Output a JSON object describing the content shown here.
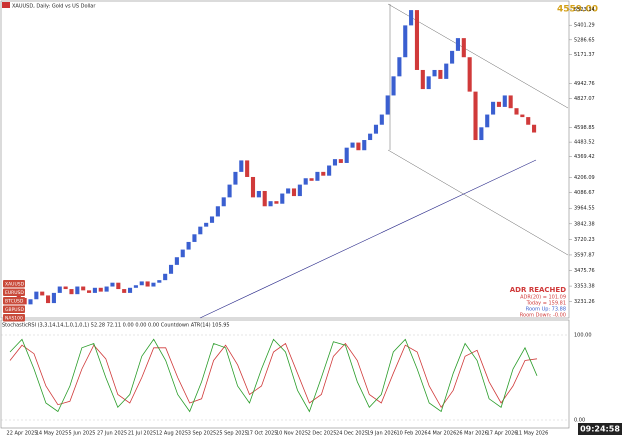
{
  "header": {
    "symbol": "XAUUSD, Daily:  Gold vs US Dollar",
    "price": "4559.00"
  },
  "chart_data": {
    "type": "candlestick",
    "closes": [
      3300,
      3260,
      3210,
      3250,
      3310,
      3280,
      3220,
      3300,
      3350,
      3330,
      3290,
      3350,
      3320,
      3300,
      3340,
      3310,
      3350,
      3380,
      3330,
      3300,
      3340,
      3360,
      3390,
      3350,
      3380,
      3400,
      3450,
      3520,
      3580,
      3640,
      3700,
      3760,
      3820,
      3850,
      3900,
      3980,
      4050,
      4150,
      4250,
      4340,
      4210,
      4050,
      4100,
      3980,
      4020,
      4000,
      4080,
      4120,
      4060,
      4150,
      4200,
      4180,
      4250,
      4220,
      4300,
      4350,
      4320,
      4440,
      4480,
      4420,
      4500,
      4550,
      4620,
      4700,
      4850,
      5000,
      5150,
      5400,
      5520,
      5050,
      4900,
      5000,
      5050,
      4980,
      5100,
      5200,
      5300,
      5150,
      4880,
      4500,
      4600,
      4700,
      4800,
      4760,
      4850,
      4750,
      4700,
      4680,
      4620,
      4559
    ],
    "up_color": "#3a5fd0",
    "down_color": "#d03a3a",
    "ylim": [
      3150,
      5560
    ],
    "yticks": [
      5523.14,
      5401.29,
      5286.65,
      5171.37,
      4942.76,
      4827.07,
      4598.85,
      4483.52,
      4369.42,
      4206.09,
      4086.67,
      3964.55,
      3842.38,
      3720.23,
      3597.87,
      3475.76,
      3353.38,
      3231.26
    ],
    "x_labels": [
      "22 Apr 2025",
      "14 May 2025",
      "5 Jun 2025",
      "27 Jun 2025",
      "21 Jul 2025",
      "12 Aug 2025",
      "3 Sep 2025",
      "25 Sep 2025",
      "17 Oct 2025",
      "10 Nov 2025",
      "2 Dec 2025",
      "24 Dec 2025",
      "19 Jan 2026",
      "10 Feb 2026",
      "4 Mar 2026",
      "26 Mar 2026",
      "17 Apr 2026",
      "11 May 2026"
    ]
  },
  "indicator": {
    "title": "StochasticRSI (3,3,14,14,1,0,1,0,1) 52.28 72.11 0.00 0.00 0.00 Countdown ATR(14) 105.95",
    "k": [
      80,
      95,
      60,
      20,
      10,
      40,
      85,
      90,
      50,
      15,
      30,
      75,
      95,
      70,
      30,
      10,
      45,
      90,
      85,
      40,
      20,
      60,
      95,
      80,
      35,
      10,
      50,
      92,
      88,
      45,
      15,
      30,
      80,
      95,
      60,
      20,
      10,
      55,
      90,
      70,
      25,
      15,
      60,
      85,
      52
    ],
    "d": [
      70,
      88,
      78,
      40,
      18,
      22,
      60,
      88,
      72,
      30,
      20,
      50,
      85,
      85,
      50,
      20,
      25,
      70,
      88,
      65,
      30,
      40,
      80,
      90,
      55,
      20,
      30,
      75,
      90,
      70,
      30,
      20,
      55,
      88,
      80,
      40,
      15,
      35,
      75,
      82,
      45,
      20,
      40,
      70,
      72
    ],
    "k_color": "#2a9d2a",
    "d_color": "#d03a3a",
    "ylim": [
      0,
      100
    ],
    "yticks": [
      {
        "value": 100,
        "label": "100.00"
      },
      {
        "value": 0,
        "label": "0.00"
      }
    ]
  },
  "symbols": [
    "XAUUSD",
    "EURUSD",
    "BTCUSD",
    "GBPUSD",
    "NAS100"
  ],
  "adr": [
    "ADR REACHED",
    "ADR(20) = 101.09",
    "Today = 159.81",
    "Room Up: 73.88",
    "Room Down: -0.00"
  ],
  "clock": "09:24:58"
}
